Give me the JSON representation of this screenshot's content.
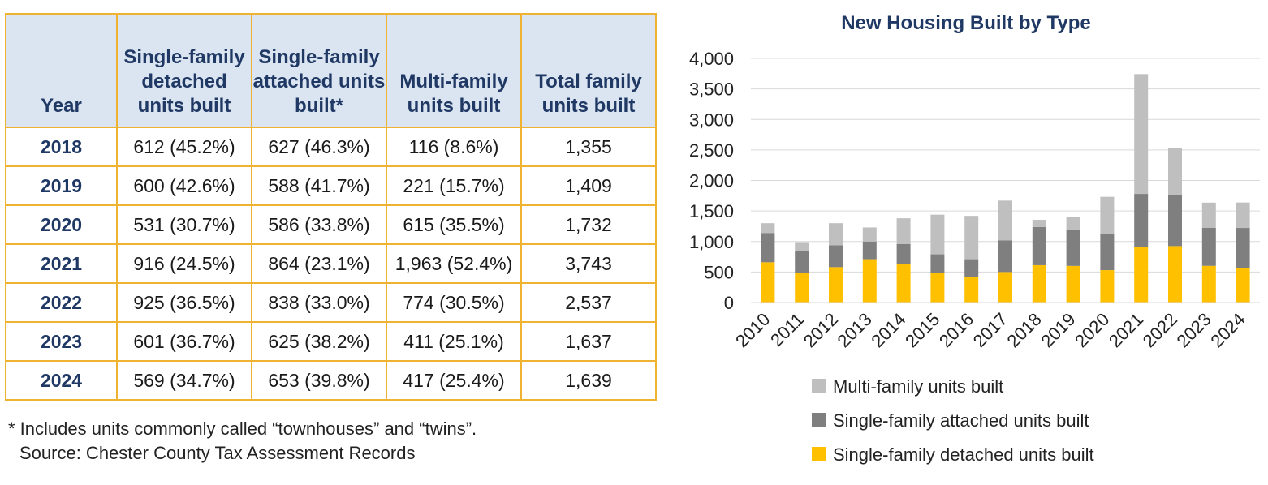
{
  "table": {
    "headers": [
      "Year",
      "Single-family detached units built",
      "Single-family attached units built*",
      "Multi-family units built",
      "Total family units built"
    ],
    "rows": [
      [
        "2018",
        "612 (45.2%)",
        "627 (46.3%)",
        "116 (8.6%)",
        "1,355"
      ],
      [
        "2019",
        "600 (42.6%)",
        "588 (41.7%)",
        "221 (15.7%)",
        "1,409"
      ],
      [
        "2020",
        "531 (30.7%)",
        "586 (33.8%)",
        "615 (35.5%)",
        "1,732"
      ],
      [
        "2021",
        "916 (24.5%)",
        "864 (23.1%)",
        "1,963 (52.4%)",
        "3,743"
      ],
      [
        "2022",
        "925 (36.5%)",
        "838 (33.0%)",
        "774 (30.5%)",
        "2,537"
      ],
      [
        "2023",
        "601 (36.7%)",
        "625 (38.2%)",
        "411 (25.1%)",
        "1,637"
      ],
      [
        "2024",
        "569 (34.7%)",
        "653 (39.8%)",
        "417 (25.4%)",
        "1,639"
      ]
    ]
  },
  "footnote": "* Includes units commonly called “townhouses” and “twins”.",
  "source": "Source: Chester County Tax Assessment Records",
  "chart_data": {
    "type": "bar",
    "stacked": true,
    "title": "New Housing Built by Type",
    "categories": [
      "2010",
      "2011",
      "2012",
      "2013",
      "2014",
      "2015",
      "2016",
      "2017",
      "2018",
      "2019",
      "2020",
      "2021",
      "2022",
      "2023",
      "2024"
    ],
    "series": [
      {
        "name": "Single-family detached units built",
        "color": "#ffc000",
        "values": [
          660,
          490,
          580,
          710,
          630,
          480,
          420,
          500,
          612,
          600,
          531,
          916,
          925,
          601,
          569
        ]
      },
      {
        "name": "Single-family attached units built",
        "color": "#7f7f7f",
        "values": [
          480,
          350,
          360,
          290,
          330,
          310,
          290,
          520,
          627,
          588,
          586,
          864,
          838,
          625,
          653
        ]
      },
      {
        "name": "Multi-family units built",
        "color": "#bfbfbf",
        "values": [
          160,
          150,
          360,
          230,
          420,
          650,
          710,
          650,
          116,
          221,
          615,
          1963,
          774,
          411,
          417
        ]
      }
    ],
    "ylim": [
      0,
      4000
    ],
    "yticks": [
      0,
      500,
      1000,
      1500,
      2000,
      2500,
      3000,
      3500,
      4000
    ],
    "ytick_labels": [
      "0",
      "500",
      "1,000",
      "1,500",
      "2,000",
      "2,500",
      "3,000",
      "3,500",
      "4,000"
    ],
    "grid": true,
    "legend_position": "bottom",
    "legend_order": [
      "Multi-family units built",
      "Single-family attached units built",
      "Single-family detached units built"
    ]
  }
}
